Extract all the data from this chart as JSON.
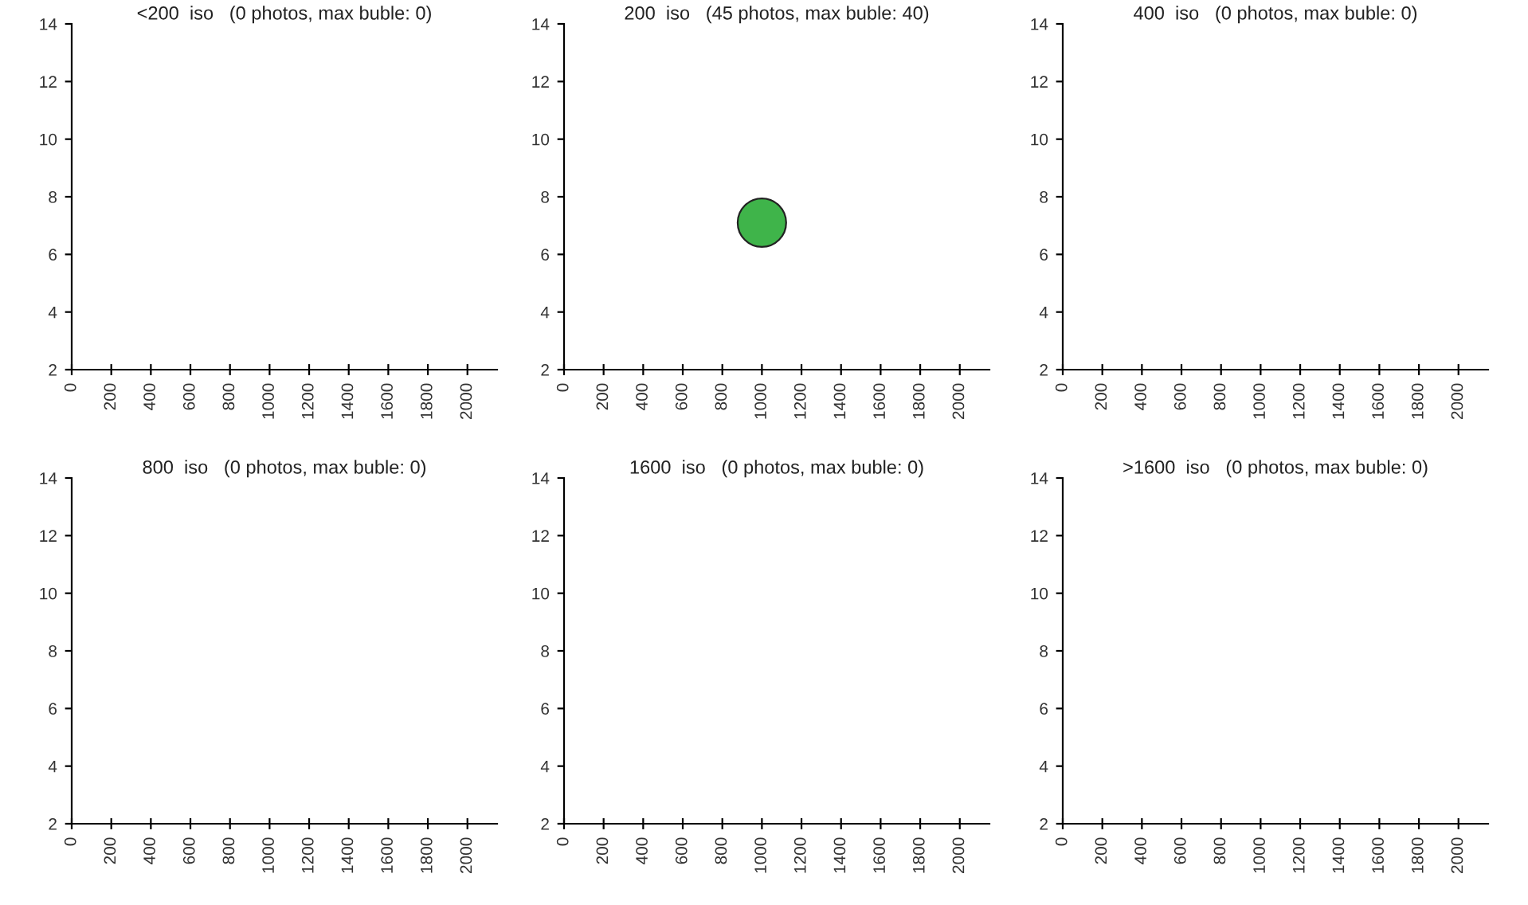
{
  "chart_data": [
    {
      "type": "bubble",
      "title": "<200  iso   (0 photos, max buble: 0)",
      "xlim": [
        0,
        2150
      ],
      "xticks": [
        0,
        200,
        400,
        600,
        800,
        1000,
        1200,
        1400,
        1600,
        1800,
        2000
      ],
      "ylim": [
        2,
        14
      ],
      "yticks": [
        2,
        4,
        6,
        8,
        10,
        12,
        14
      ],
      "grid": false
    },
    {
      "type": "bubble",
      "title": "200  iso   (45 photos, max buble: 40)",
      "xlim": [
        0,
        2150
      ],
      "xticks": [
        0,
        200,
        400,
        600,
        800,
        1000,
        1200,
        1400,
        1600,
        1800,
        2000
      ],
      "ylim": [
        2,
        14
      ],
      "yticks": [
        2,
        4,
        6,
        8,
        10,
        12,
        14
      ],
      "grid": false,
      "series": [
        {
          "color": "#3fb44a",
          "x": [
            1000
          ],
          "values": [
            7.1
          ],
          "sizes": [
            1
          ]
        }
      ]
    },
    {
      "type": "bubble",
      "title": "400  iso   (0 photos, max buble: 0)",
      "xlim": [
        0,
        2150
      ],
      "xticks": [
        0,
        200,
        400,
        600,
        800,
        1000,
        1200,
        1400,
        1600,
        1800,
        2000
      ],
      "ylim": [
        2,
        14
      ],
      "yticks": [
        2,
        4,
        6,
        8,
        10,
        12,
        14
      ],
      "grid": false
    },
    {
      "type": "bubble",
      "title": "800  iso   (0 photos, max buble: 0)",
      "xlim": [
        0,
        2150
      ],
      "xticks": [
        0,
        200,
        400,
        600,
        800,
        1000,
        1200,
        1400,
        1600,
        1800,
        2000
      ],
      "ylim": [
        2,
        14
      ],
      "yticks": [
        2,
        4,
        6,
        8,
        10,
        12,
        14
      ],
      "grid": false
    },
    {
      "type": "bubble",
      "title": "1600  iso   (0 photos, max buble: 0)",
      "xlim": [
        0,
        2150
      ],
      "xticks": [
        0,
        200,
        400,
        600,
        800,
        1000,
        1200,
        1400,
        1600,
        1800,
        2000
      ],
      "ylim": [
        2,
        14
      ],
      "yticks": [
        2,
        4,
        6,
        8,
        10,
        12,
        14
      ],
      "grid": false
    },
    {
      "type": "bubble",
      "title": ">1600  iso   (0 photos, max buble: 0)",
      "xlim": [
        0,
        2150
      ],
      "xticks": [
        0,
        200,
        400,
        600,
        800,
        1000,
        1200,
        1400,
        1600,
        1800,
        2000
      ],
      "ylim": [
        2,
        14
      ],
      "yticks": [
        2,
        4,
        6,
        8,
        10,
        12,
        14
      ],
      "grid": false
    }
  ]
}
